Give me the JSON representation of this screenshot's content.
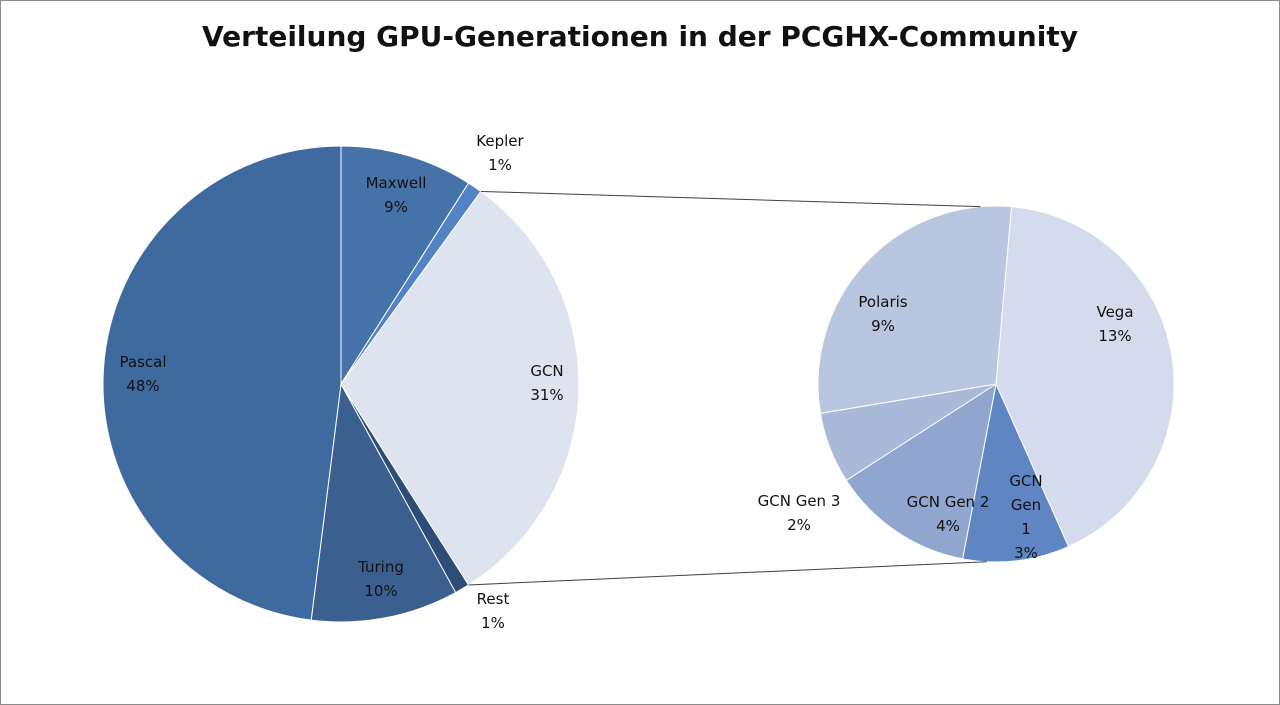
{
  "chart_data": {
    "type": "pie",
    "subtype": "pie-of-pie",
    "title": "Verteilung GPU-Generationen in der PCGHX-Community",
    "main": {
      "slices": [
        {
          "label": "Maxwell",
          "value": 9,
          "pct": "9%",
          "color": "#4672aa"
        },
        {
          "label": "Kepler",
          "value": 1,
          "pct": "1%",
          "color": "#5383c6"
        },
        {
          "label": "GCN",
          "value": 31,
          "pct": "31%",
          "color": "#dde3ef"
        },
        {
          "label": "Rest",
          "value": 1,
          "pct": "1%",
          "color": "#2e4d76"
        },
        {
          "label": "Turing",
          "value": 10,
          "pct": "10%",
          "color": "#3b6090"
        },
        {
          "label": "Pascal",
          "value": 48,
          "pct": "48%",
          "color": "#3f6aa0"
        }
      ]
    },
    "secondary": {
      "of": "GCN",
      "slices": [
        {
          "label": "Vega",
          "value": 13,
          "pct": "13%",
          "color": "#d3dbec"
        },
        {
          "label": "GCN Gen 1",
          "value": 3,
          "pct": "3%",
          "color": "#5f86c3"
        },
        {
          "label": "GCN Gen 2",
          "value": 4,
          "pct": "4%",
          "color": "#91a6cf"
        },
        {
          "label": "GCN Gen 3",
          "value": 2,
          "pct": "2%",
          "color": "#a9b9da"
        },
        {
          "label": "Polaris",
          "value": 9,
          "pct": "9%",
          "color": "#b9c6e0"
        }
      ]
    }
  }
}
